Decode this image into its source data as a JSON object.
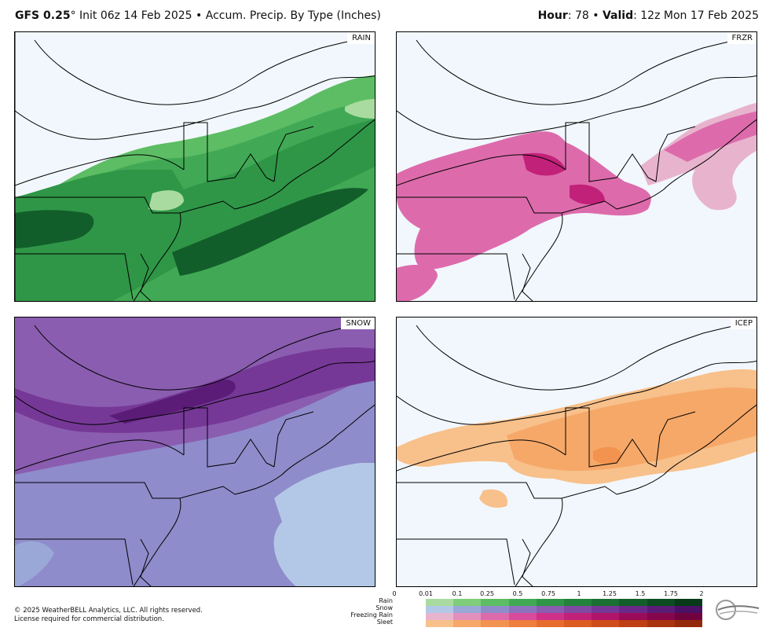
{
  "header": {
    "model": "GFS 0.25",
    "degree": "°",
    "init": " Init 06z 14 Feb 2025",
    "sep": " • ",
    "product": "Accum. Precip. By Type (Inches)",
    "hour_label": "Hour",
    "hour_value": ": 78",
    "valid_label": "Valid",
    "valid_value": ": 12z Mon 17 Feb 2025"
  },
  "panels": [
    {
      "label": "RAIN"
    },
    {
      "label": "FRZR"
    },
    {
      "label": "SNOW"
    },
    {
      "label": "ICEP"
    }
  ],
  "legend": {
    "ticks": [
      "0",
      "0.01",
      "0.1",
      "0.25",
      "0.5",
      "0.75",
      "1",
      "1.25",
      "1.5",
      "1.75",
      "2"
    ],
    "rows": [
      "Rain",
      "Snow",
      "Freezing Rain",
      "Sleet"
    ],
    "colors": {
      "rain": [
        "#a9dba0",
        "#7fcd7a",
        "#5dbd64",
        "#41a955",
        "#2f9647",
        "#23833c",
        "#1a7033",
        "#125e2a",
        "#0b4c21",
        "#063a18"
      ],
      "snow": [
        "#b3c8e6",
        "#9aa8d8",
        "#8f8ccb",
        "#8d73bd",
        "#8a5db0",
        "#8249a3",
        "#763897",
        "#6a2988",
        "#5b1c77",
        "#4b1166"
      ],
      "frzr": [
        "#e8b4cd",
        "#e28fbc",
        "#dd6bac",
        "#d84a9b",
        "#cf318a",
        "#c22179",
        "#b01569",
        "#9a0c5a",
        "#85064b",
        "#70033d"
      ],
      "icep": [
        "#f8c08a",
        "#f6a868",
        "#f39350",
        "#ee7f3c",
        "#e66d2d",
        "#dc5c22",
        "#cf4d1a",
        "#be3f14",
        "#aa330f",
        "#95290b"
      ]
    }
  },
  "footer": {
    "copyright_line1": "© 2025 WeatherBELL Analytics, LLC. All rights reserved.",
    "copyright_line2": "License required for commercial distribution."
  },
  "logo_icon": "weatherbell-logo"
}
